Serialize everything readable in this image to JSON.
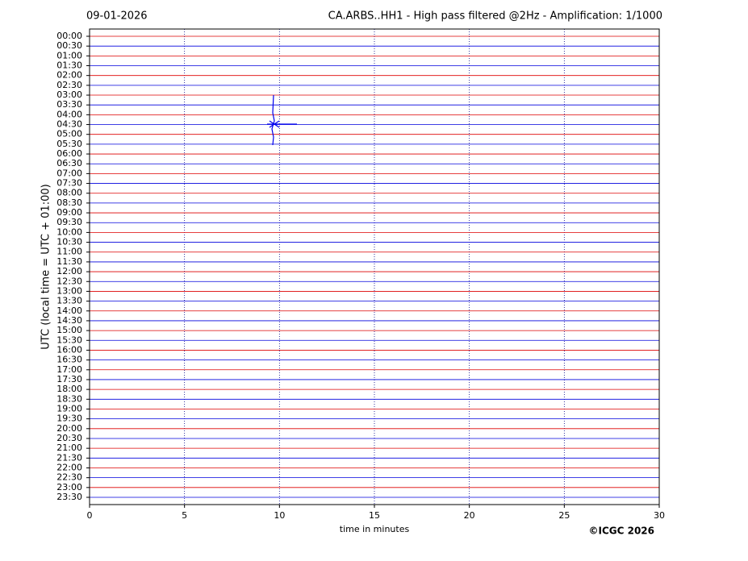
{
  "chart_data": {
    "type": "helicorder",
    "date": "09-01-2026",
    "title": "CA.ARBS..HH1 - High pass filtered @2Hz - Amplification: 1/1000",
    "xlabel": "time in minutes",
    "ylabel": "UTC (local time = UTC + 01:00)",
    "copyright": "©ICGC 2026",
    "xlim": [
      0,
      30
    ],
    "xticks": [
      0,
      5,
      10,
      15,
      20,
      25,
      30
    ],
    "grid": true,
    "trace_colors": [
      "#dd0000",
      "#0000dd"
    ],
    "categories": [
      "00:00",
      "00:30",
      "01:00",
      "01:30",
      "02:00",
      "02:30",
      "03:00",
      "03:30",
      "04:00",
      "04:30",
      "05:00",
      "05:30",
      "06:00",
      "06:30",
      "07:00",
      "07:30",
      "08:00",
      "08:30",
      "09:00",
      "09:30",
      "10:00",
      "10:30",
      "11:00",
      "11:30",
      "12:00",
      "12:30",
      "13:00",
      "13:30",
      "14:00",
      "14:30",
      "15:00",
      "15:30",
      "16:00",
      "16:30",
      "17:00",
      "17:30",
      "18:00",
      "18:30",
      "19:00",
      "19:30",
      "20:00",
      "20:30",
      "21:00",
      "21:30",
      "22:00",
      "22:30",
      "23:00",
      "23:30"
    ]
  }
}
